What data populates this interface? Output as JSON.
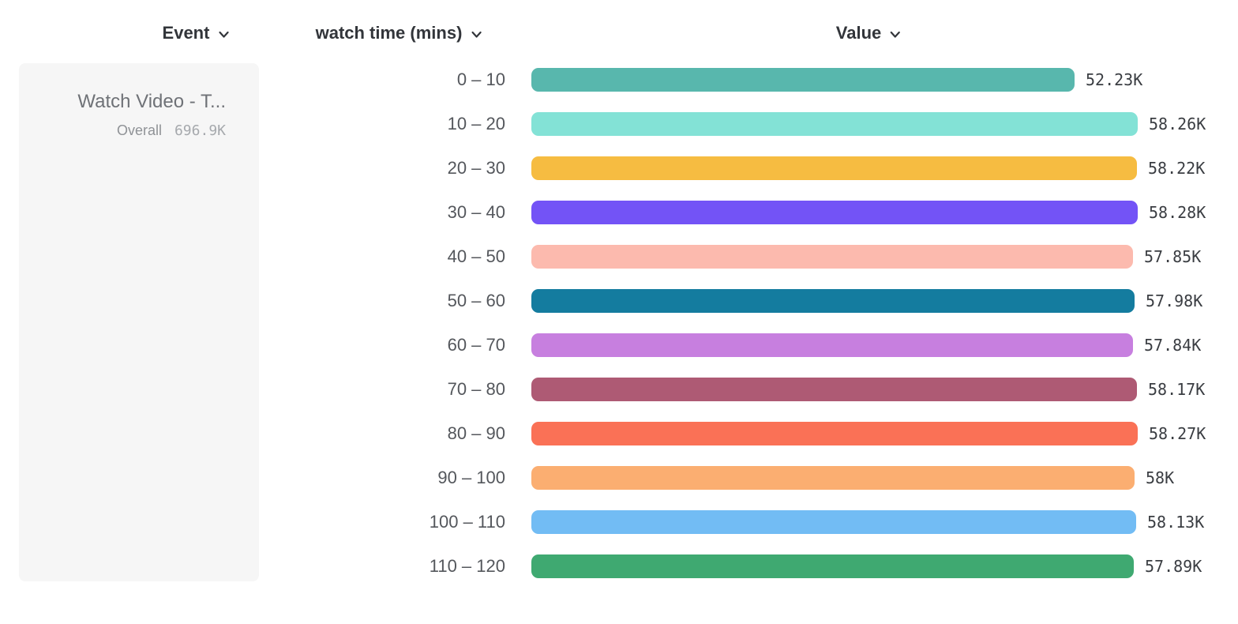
{
  "headers": {
    "event": "Event",
    "watch_time": "watch time (mins)",
    "value": "Value"
  },
  "event_card": {
    "title": "Watch Video - T...",
    "overall_label": "Overall",
    "overall_value": "696.9K"
  },
  "colors": {
    "page_bg": "#ffffff",
    "card_bg": "#f6f6f6",
    "header_text": "#32353a",
    "row_label_text": "#54575c",
    "value_text": "#3a3d42",
    "card_title_text": "#6f7277",
    "overall_label_text": "#8f9296",
    "overall_value_text": "#a6a9ad"
  },
  "chart_data": {
    "type": "bar",
    "orientation": "horizontal",
    "title": "",
    "xlabel": "Value",
    "ylabel": "watch time (mins)",
    "grid": false,
    "legend": false,
    "xlim": [
      0,
      58280
    ],
    "categories": [
      "0 – 10",
      "10 – 20",
      "20 – 30",
      "30 – 40",
      "40 – 50",
      "50 – 60",
      "60 – 70",
      "70 – 80",
      "80 – 90",
      "90 – 100",
      "100 – 110",
      "110 – 120"
    ],
    "values": [
      52230,
      58260,
      58220,
      58280,
      57850,
      57980,
      57840,
      58170,
      58270,
      58000,
      58130,
      57890
    ],
    "value_labels": [
      "52.23K",
      "58.26K",
      "58.22K",
      "58.28K",
      "57.85K",
      "57.98K",
      "57.84K",
      "58.17K",
      "58.27K",
      "58K",
      "58.13K",
      "57.89K"
    ],
    "bar_colors": [
      "#58B7AD",
      "#83E2D6",
      "#F6BC41",
      "#7353F6",
      "#FCBAAE",
      "#147C9F",
      "#C77FDF",
      "#AE5A74",
      "#FA7156",
      "#FBAE71",
      "#72BCF4",
      "#3FA971"
    ]
  }
}
